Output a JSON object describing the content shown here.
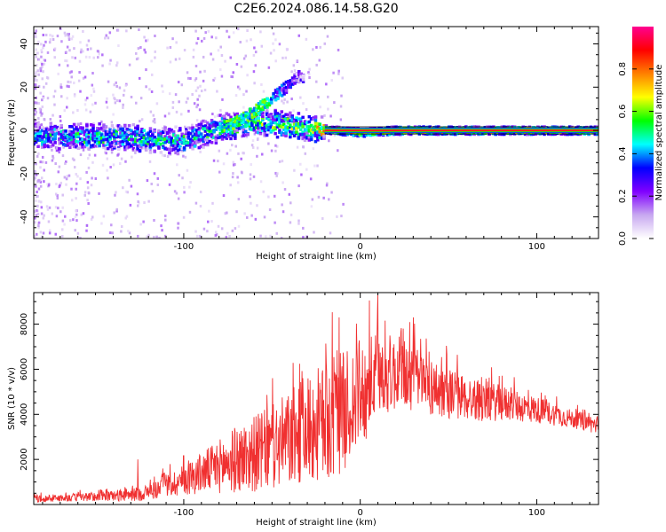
{
  "title": "C2E6.2024.086.14.58.G20",
  "chart_data": [
    {
      "type": "heatmap",
      "xlabel": "Height of straight line (km)",
      "ylabel": "Frequency (Hz)",
      "xlim": [
        -185,
        135
      ],
      "ylim": [
        -50,
        48
      ],
      "xticks": [
        -100,
        0,
        100
      ],
      "xtick_labels": [
        "-100",
        "0",
        "100"
      ],
      "yticks": [
        -40,
        -20,
        0,
        20,
        40
      ],
      "ytick_labels": [
        "-40",
        "-20",
        "0",
        "20",
        "40"
      ],
      "colorbar": {
        "label": "Normalized spectral amplitude",
        "range": [
          0,
          1
        ],
        "ticks": [
          0.0,
          0.2,
          0.4,
          0.6,
          0.8
        ],
        "tick_labels": [
          "0.0",
          "0.2",
          "0.4",
          "0.6",
          "0.8"
        ],
        "colormap": [
          "#ffffff",
          "#c8a8f0",
          "#8000ff",
          "#0000ff",
          "#00ffff",
          "#00ff00",
          "#ffff00",
          "#ff8000",
          "#ff0000",
          "#ff0090"
        ]
      },
      "ridge": [
        {
          "x": -180,
          "y": -2.5,
          "amp": 0.45
        },
        {
          "x": -160,
          "y": -3,
          "amp": 0.5
        },
        {
          "x": -140,
          "y": -3,
          "amp": 0.5
        },
        {
          "x": -120,
          "y": -4,
          "amp": 0.55
        },
        {
          "x": -100,
          "y": -5,
          "amp": 0.5
        },
        {
          "x": -80,
          "y": 1,
          "amp": 0.55
        },
        {
          "x": -60,
          "y": 4,
          "amp": 0.6
        },
        {
          "x": -45,
          "y": 3,
          "amp": 0.6
        },
        {
          "x": -30,
          "y": 1,
          "amp": 0.65
        },
        {
          "x": -20,
          "y": 0.5,
          "amp": 0.75
        },
        {
          "x": 0,
          "y": -1,
          "amp": 0.8
        },
        {
          "x": 20,
          "y": 0,
          "amp": 0.85
        },
        {
          "x": 60,
          "y": 0,
          "amp": 0.85
        },
        {
          "x": 100,
          "y": 0,
          "amp": 0.85
        },
        {
          "x": 135,
          "y": 0,
          "amp": 0.85
        }
      ],
      "branch": [
        {
          "x": -75,
          "y": 2,
          "amp": 0.5
        },
        {
          "x": -65,
          "y": 6,
          "amp": 0.5
        },
        {
          "x": -55,
          "y": 12,
          "amp": 0.5
        },
        {
          "x": -45,
          "y": 18,
          "amp": 0.3
        },
        {
          "x": -35,
          "y": 25,
          "amp": 0.15
        }
      ]
    },
    {
      "type": "line",
      "xlabel": "Height of straight line (km)",
      "ylabel": "SNR (10 * v/v)",
      "xlim": [
        -185,
        135
      ],
      "ylim": [
        0,
        9400
      ],
      "xticks": [
        -100,
        0,
        100
      ],
      "xtick_labels": [
        "-100",
        "0",
        "100"
      ],
      "yticks": [
        2000,
        4000,
        6000,
        8000
      ],
      "ytick_labels": [
        "2000",
        "4000",
        "6000",
        "8000"
      ],
      "color": "#f03030",
      "envelope": [
        {
          "x": -185,
          "mean": 250,
          "spread": 150
        },
        {
          "x": -150,
          "mean": 350,
          "spread": 200
        },
        {
          "x": -125,
          "mean": 450,
          "spread": 300
        },
        {
          "x": -110,
          "mean": 800,
          "spread": 500
        },
        {
          "x": -90,
          "mean": 1400,
          "spread": 900
        },
        {
          "x": -70,
          "mean": 2000,
          "spread": 1500
        },
        {
          "x": -50,
          "mean": 2500,
          "spread": 1900
        },
        {
          "x": -30,
          "mean": 3300,
          "spread": 2400
        },
        {
          "x": -15,
          "mean": 3800,
          "spread": 2800
        },
        {
          "x": 0,
          "mean": 4800,
          "spread": 2400
        },
        {
          "x": 10,
          "mean": 5800,
          "spread": 1900
        },
        {
          "x": 25,
          "mean": 5800,
          "spread": 1600
        },
        {
          "x": 40,
          "mean": 5200,
          "spread": 1300
        },
        {
          "x": 60,
          "mean": 4700,
          "spread": 1000
        },
        {
          "x": 80,
          "mean": 4500,
          "spread": 800
        },
        {
          "x": 100,
          "mean": 4200,
          "spread": 600
        },
        {
          "x": 120,
          "mean": 3800,
          "spread": 400
        },
        {
          "x": 135,
          "mean": 3500,
          "spread": 400
        }
      ],
      "peaks": [
        {
          "x": -126,
          "y": 2000
        },
        {
          "x": -12,
          "y": 8300
        },
        {
          "x": 10,
          "y": 9300
        },
        {
          "x": 30,
          "y": 8300
        }
      ]
    }
  ]
}
